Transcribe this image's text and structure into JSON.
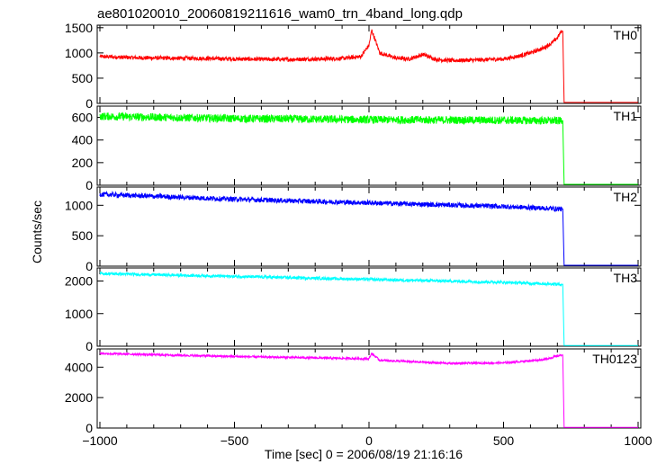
{
  "chart_data": {
    "type": "line",
    "title": "ae801020010_20060819211616_wam0_trn_4band_long.qdp",
    "xlabel": "Time [sec] 0 = 2006/08/19 21:16:16",
    "ylabel": "Counts/sec",
    "xlim": [
      -1010,
      1010
    ],
    "x_ticks": [
      -1000,
      -500,
      0,
      500,
      1000
    ],
    "x_tick_labels": [
      "−1000",
      "−500",
      "0",
      "500",
      "1000"
    ],
    "grid": false,
    "panels": [
      {
        "name": "TH0",
        "color": "#ff0000",
        "ylim": [
          0,
          1550
        ],
        "y_ticks": [
          0,
          500,
          1000,
          1500
        ],
        "x": [
          -1000,
          -900,
          -800,
          -700,
          -600,
          -500,
          -400,
          -300,
          -200,
          -100,
          -30,
          0,
          10,
          40,
          100,
          150,
          200,
          250,
          300,
          400,
          500,
          550,
          600,
          650,
          680,
          700,
          715,
          720,
          725,
          1000
        ],
        "values": [
          930,
          910,
          900,
          895,
          890,
          880,
          875,
          870,
          880,
          890,
          930,
          1150,
          1450,
          1000,
          900,
          880,
          970,
          870,
          850,
          860,
          880,
          930,
          1000,
          1100,
          1200,
          1300,
          1430,
          1430,
          20,
          20
        ],
        "noise": 40
      },
      {
        "name": "TH1",
        "color": "#00ff00",
        "ylim": [
          0,
          700
        ],
        "y_ticks": [
          0,
          200,
          400,
          600
        ],
        "x": [
          -1000,
          -500,
          0,
          500,
          715,
          720,
          725,
          1000
        ],
        "values": [
          610,
          590,
          580,
          575,
          570,
          570,
          8,
          8
        ],
        "noise": 35
      },
      {
        "name": "TH2",
        "color": "#0000ff",
        "ylim": [
          0,
          1300
        ],
        "y_ticks": [
          0,
          500,
          1000
        ],
        "x": [
          -1000,
          -500,
          0,
          500,
          715,
          720,
          725,
          1000
        ],
        "values": [
          1180,
          1100,
          1040,
          980,
          940,
          940,
          15,
          15
        ],
        "noise": 40
      },
      {
        "name": "TH3",
        "color": "#00ffff",
        "ylim": [
          0,
          2400
        ],
        "y_ticks": [
          0,
          1000,
          2000
        ],
        "x": [
          -1000,
          -500,
          0,
          500,
          715,
          720,
          725,
          1000
        ],
        "values": [
          2230,
          2140,
          2050,
          1960,
          1900,
          1900,
          20,
          20
        ],
        "noise": 45
      },
      {
        "name": "TH0123",
        "color": "#ff00ff",
        "ylim": [
          0,
          5200
        ],
        "y_ticks": [
          0,
          2000,
          4000
        ],
        "x": [
          -1000,
          -500,
          0,
          10,
          40,
          100,
          300,
          500,
          650,
          715,
          720,
          725,
          1000
        ],
        "values": [
          4900,
          4700,
          4550,
          4900,
          4450,
          4400,
          4250,
          4280,
          4500,
          4800,
          4800,
          40,
          40
        ],
        "noise": 70
      }
    ]
  }
}
